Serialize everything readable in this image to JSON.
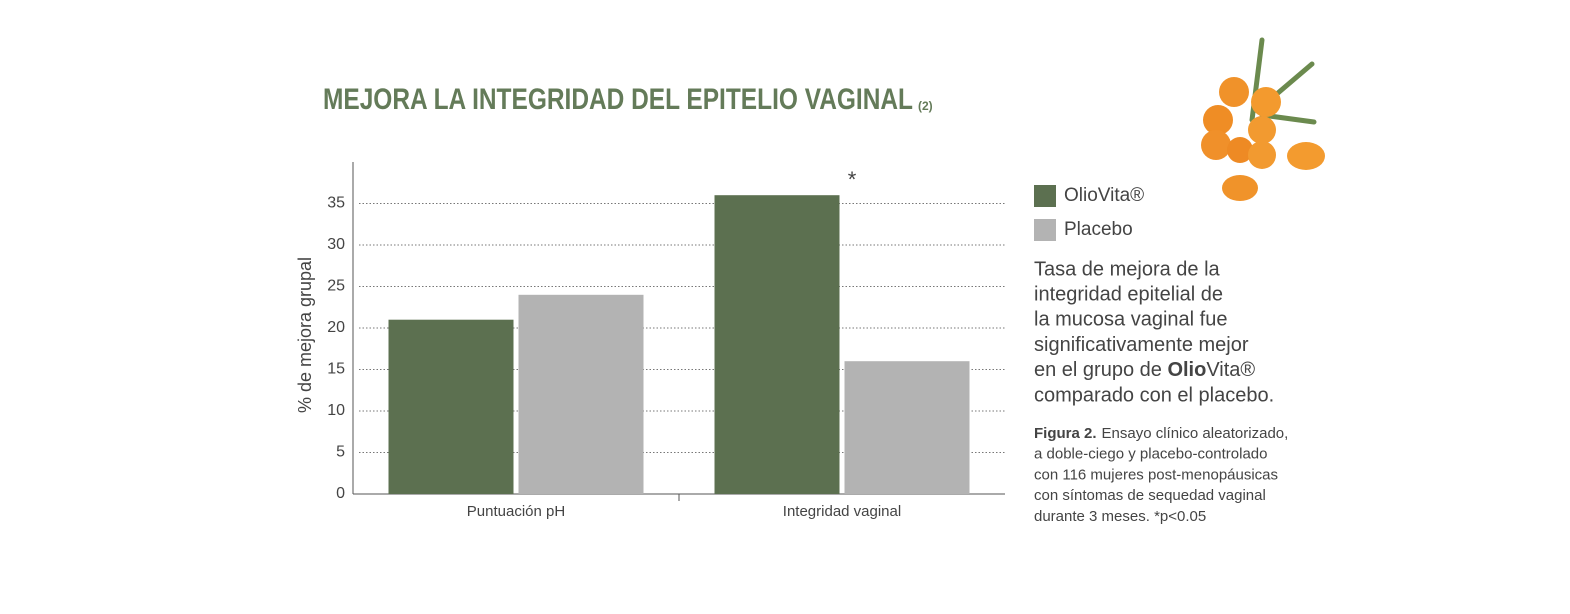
{
  "chart_data": {
    "type": "bar",
    "title": "MEJORA LA INTEGRIDAD DEL EPITELIO VAGINAL",
    "title_ref": "(2)",
    "y_label": "% de mejora grupal",
    "categories": [
      "Puntuación pH",
      "Integridad vaginal"
    ],
    "series": [
      {
        "name": "OlioVita®",
        "color": "#5c7050",
        "values": [
          21,
          36
        ]
      },
      {
        "name": "Placebo",
        "color": "#b3b3b3",
        "values": [
          24,
          16
        ]
      }
    ],
    "ylim": [
      0,
      40
    ],
    "yticks": [
      0,
      5,
      10,
      15,
      20,
      25,
      30,
      35
    ],
    "grid": true,
    "annotation": "*",
    "description": [
      "Tasa de mejora de la",
      "integridad epitelial de",
      "la mucosa vaginal fue",
      "significativamente mejor",
      [
        "en el grupo de ",
        "Olio",
        "Vita®"
      ],
      "comparado con el placebo."
    ],
    "caption_label": "Figura 2.",
    "caption": [
      "Ensayo clínico aleatorizado,",
      "a doble-ciego y placebo-controlado",
      "con 116 mujeres post-menopáusicas",
      "con síntomas de sequedad vaginal",
      "durante 3 meses. *p<0.05"
    ]
  }
}
